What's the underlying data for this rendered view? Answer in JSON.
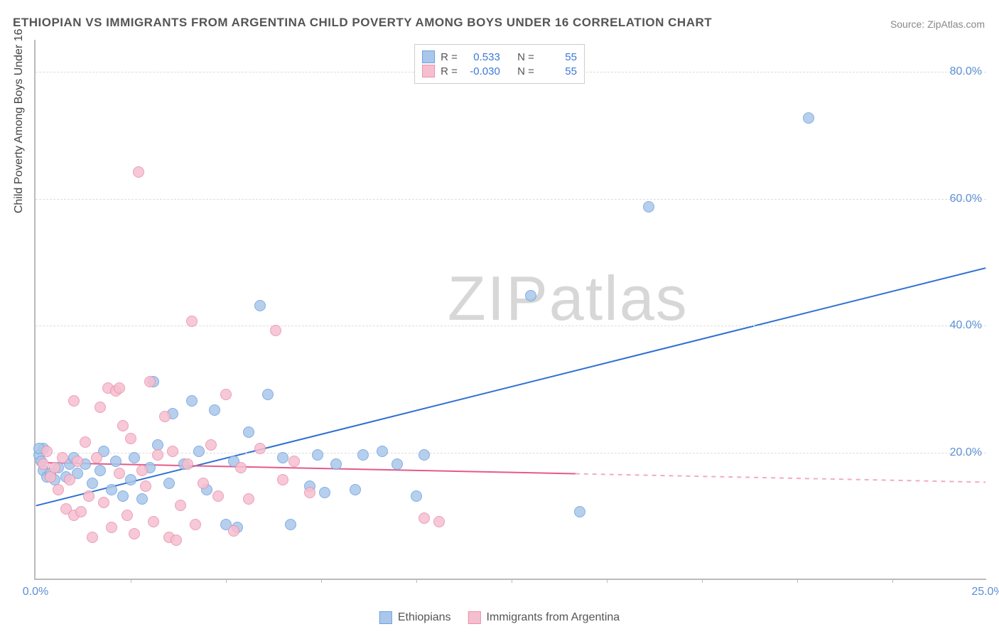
{
  "title": "ETHIOPIAN VS IMMIGRANTS FROM ARGENTINA CHILD POVERTY AMONG BOYS UNDER 16 CORRELATION CHART",
  "source_label": "Source:",
  "source_name": "ZipAtlas.com",
  "ylabel": "Child Poverty Among Boys Under 16",
  "watermark": "ZIPatlas",
  "chart": {
    "type": "scatter",
    "background_color": "#ffffff",
    "grid_color": "#dddddd",
    "axis_color": "#bbbbbb",
    "tick_label_color": "#5b8fd6",
    "label_fontsize": 16,
    "title_fontsize": 17,
    "xlim": [
      0,
      25
    ],
    "ylim": [
      0,
      85
    ],
    "ytick_values": [
      20,
      40,
      60,
      80
    ],
    "ytick_labels": [
      "20.0%",
      "40.0%",
      "60.0%",
      "80.0%"
    ],
    "xtick_values": [
      0,
      25
    ],
    "xtick_labels": [
      "0.0%",
      "25.0%"
    ],
    "xtick_marks": [
      2.5,
      5.0,
      7.5,
      10.0,
      12.5,
      15.0,
      17.5,
      20.0,
      22.5
    ],
    "marker_radius": 8,
    "marker_border_width": 1.5,
    "marker_fill_opacity": 0.35,
    "series": [
      {
        "name": "Ethiopians",
        "color_fill": "#a9c7ea",
        "color_stroke": "#6fa1de",
        "r_value": "0.533",
        "n_value": "55",
        "trend": {
          "y_at_xmin": 11.5,
          "y_at_xmax": 49.0,
          "solid_until_x": 25,
          "color": "#2f6fd0",
          "width": 2
        },
        "points": [
          [
            0.1,
            19.5
          ],
          [
            0.15,
            18.5
          ],
          [
            0.2,
            17.0
          ],
          [
            0.2,
            20.5
          ],
          [
            0.3,
            16.0
          ],
          [
            0.4,
            16.5
          ],
          [
            0.5,
            15.5
          ],
          [
            0.6,
            17.5
          ],
          [
            0.8,
            16.0
          ],
          [
            0.9,
            18.0
          ],
          [
            1.0,
            19.0
          ],
          [
            1.1,
            16.5
          ],
          [
            1.3,
            18.0
          ],
          [
            1.5,
            15.0
          ],
          [
            1.7,
            17.0
          ],
          [
            1.8,
            20.0
          ],
          [
            2.0,
            14.0
          ],
          [
            2.1,
            18.5
          ],
          [
            2.3,
            13.0
          ],
          [
            2.5,
            15.5
          ],
          [
            2.6,
            19.0
          ],
          [
            2.8,
            12.5
          ],
          [
            3.0,
            17.5
          ],
          [
            3.1,
            31.0
          ],
          [
            3.2,
            21.0
          ],
          [
            3.5,
            15.0
          ],
          [
            3.6,
            26.0
          ],
          [
            3.9,
            18.0
          ],
          [
            4.1,
            28.0
          ],
          [
            4.3,
            20.0
          ],
          [
            4.5,
            14.0
          ],
          [
            4.7,
            26.5
          ],
          [
            5.0,
            8.5
          ],
          [
            5.2,
            18.5
          ],
          [
            5.3,
            8.0
          ],
          [
            5.6,
            23.0
          ],
          [
            5.9,
            43.0
          ],
          [
            6.1,
            29.0
          ],
          [
            6.5,
            19.0
          ],
          [
            6.7,
            8.5
          ],
          [
            7.2,
            14.5
          ],
          [
            7.4,
            19.5
          ],
          [
            7.6,
            13.5
          ],
          [
            7.9,
            18.0
          ],
          [
            8.4,
            14.0
          ],
          [
            8.6,
            19.5
          ],
          [
            9.1,
            20.0
          ],
          [
            9.5,
            18.0
          ],
          [
            10.0,
            13.0
          ],
          [
            10.2,
            19.5
          ],
          [
            13.0,
            44.5
          ],
          [
            14.3,
            10.5
          ],
          [
            16.1,
            58.5
          ],
          [
            20.3,
            72.5
          ],
          [
            0.1,
            20.5
          ]
        ]
      },
      {
        "name": "Immigrants from Argentina",
        "color_fill": "#f6bfcf",
        "color_stroke": "#ea8fb0",
        "r_value": "-0.030",
        "n_value": "55",
        "trend": {
          "y_at_xmin": 18.3,
          "y_at_xmax": 15.2,
          "solid_until_x": 14.2,
          "color": "#e45a8a",
          "width": 2
        },
        "points": [
          [
            0.2,
            18.0
          ],
          [
            0.3,
            20.0
          ],
          [
            0.4,
            16.0
          ],
          [
            0.5,
            17.5
          ],
          [
            0.6,
            14.0
          ],
          [
            0.7,
            19.0
          ],
          [
            0.8,
            11.0
          ],
          [
            0.9,
            15.5
          ],
          [
            1.0,
            10.0
          ],
          [
            1.1,
            18.5
          ],
          [
            1.2,
            10.5
          ],
          [
            1.3,
            21.5
          ],
          [
            1.4,
            13.0
          ],
          [
            1.5,
            6.5
          ],
          [
            1.6,
            19.0
          ],
          [
            1.7,
            27.0
          ],
          [
            1.8,
            12.0
          ],
          [
            1.9,
            30.0
          ],
          [
            2.0,
            8.0
          ],
          [
            2.1,
            29.5
          ],
          [
            2.2,
            16.5
          ],
          [
            2.3,
            24.0
          ],
          [
            2.4,
            10.0
          ],
          [
            2.5,
            22.0
          ],
          [
            2.6,
            7.0
          ],
          [
            2.7,
            64.0
          ],
          [
            2.8,
            17.0
          ],
          [
            2.9,
            14.5
          ],
          [
            3.0,
            31.0
          ],
          [
            3.1,
            9.0
          ],
          [
            3.2,
            19.5
          ],
          [
            3.4,
            25.5
          ],
          [
            3.5,
            6.5
          ],
          [
            3.6,
            20.0
          ],
          [
            3.8,
            11.5
          ],
          [
            4.0,
            18.0
          ],
          [
            4.1,
            40.5
          ],
          [
            4.2,
            8.5
          ],
          [
            4.4,
            15.0
          ],
          [
            4.6,
            21.0
          ],
          [
            4.8,
            13.0
          ],
          [
            5.0,
            29.0
          ],
          [
            5.2,
            7.5
          ],
          [
            5.4,
            17.5
          ],
          [
            5.6,
            12.5
          ],
          [
            5.9,
            20.5
          ],
          [
            6.3,
            39.0
          ],
          [
            6.5,
            15.5
          ],
          [
            6.8,
            18.5
          ],
          [
            7.2,
            13.5
          ],
          [
            10.2,
            9.5
          ],
          [
            10.6,
            9.0
          ],
          [
            1.0,
            28.0
          ],
          [
            2.2,
            30.0
          ],
          [
            3.7,
            6.0
          ]
        ]
      }
    ]
  },
  "legend_top": {
    "r_label": "R =",
    "n_label": "N ="
  },
  "legend_bottom": [
    {
      "label": "Ethiopians",
      "fill": "#a9c7ea",
      "stroke": "#6fa1de"
    },
    {
      "label": "Immigrants from Argentina",
      "fill": "#f6bfcf",
      "stroke": "#ea8fb0"
    }
  ]
}
